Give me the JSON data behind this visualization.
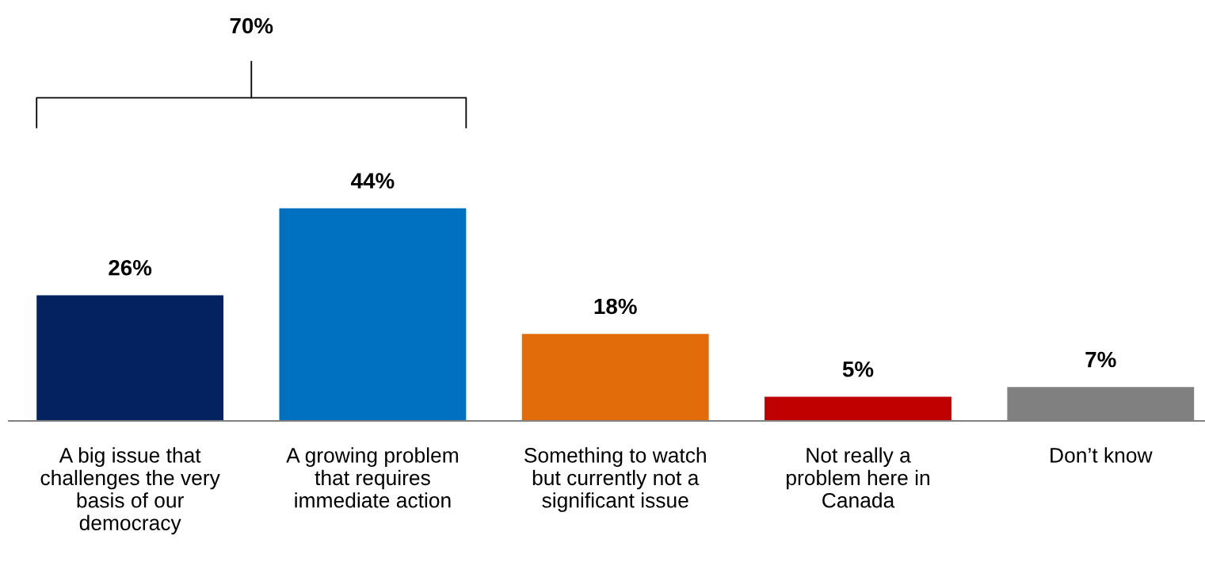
{
  "chart_data": {
    "type": "bar",
    "categories": [
      "A big issue that\nchallenges the very\nbasis of our\ndemocracy",
      "A growing problem\nthat requires\nimmediate action",
      "Something to watch\nbut currently not a\nsignificant issue",
      "Not really a\nproblem here in\nCanada",
      "Don’t know"
    ],
    "values": [
      26,
      44,
      18,
      5,
      7
    ],
    "colors": [
      "#042160",
      "#0070c0",
      "#e36c0a",
      "#c00000",
      "#808080"
    ],
    "value_labels": [
      "26%",
      "44%",
      "18%",
      "5%",
      "7%"
    ],
    "annotations": [
      "70%"
    ],
    "tick_labels": "x",
    "grid": false,
    "legend": false
  }
}
